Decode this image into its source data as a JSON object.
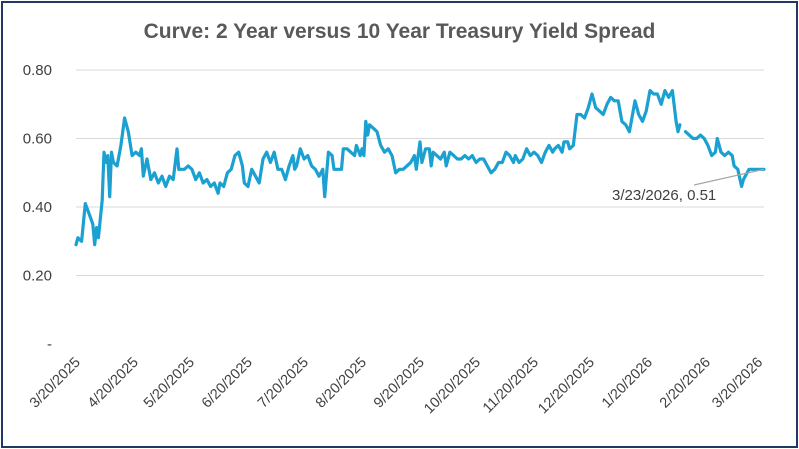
{
  "chart_data": {
    "type": "line",
    "title": "Curve: 2 Year versus 10 Year Treasury Yield Spread",
    "xlabel": "",
    "ylabel": "",
    "ylim": [
      0,
      0.8
    ],
    "yticks": [
      0,
      0.2,
      0.4,
      0.6,
      0.8
    ],
    "ytick_labels": [
      "-",
      "0.20",
      "0.40",
      "0.60",
      "0.80"
    ],
    "xlim": [
      "3/20/2025",
      "3/23/2026"
    ],
    "x_tick_labels": [
      "3/20/2025",
      "4/20/2025",
      "5/20/2025",
      "6/20/2025",
      "7/20/2025",
      "8/20/2025",
      "9/20/2025",
      "10/20/2025",
      "11/20/2025",
      "12/20/2025",
      "1/20/2026",
      "2/20/2026",
      "3/20/2026"
    ],
    "x_tick_days": [
      0,
      31,
      61,
      92,
      122,
      153,
      184,
      214,
      245,
      275,
      306,
      337,
      365
    ],
    "grid": true,
    "series": [
      {
        "name": "2 Year versus 10 Year Treasury Yield Spread",
        "color": "#1ba1d1",
        "points": [
          [
            0,
            0.29
          ],
          [
            1,
            0.31
          ],
          [
            3,
            0.3
          ],
          [
            5,
            0.41
          ],
          [
            7,
            0.38
          ],
          [
            9,
            0.35
          ],
          [
            10,
            0.29
          ],
          [
            11,
            0.34
          ],
          [
            12,
            0.31
          ],
          [
            14,
            0.42
          ],
          [
            15,
            0.56
          ],
          [
            16,
            0.53
          ],
          [
            17,
            0.55
          ],
          [
            18,
            0.43
          ],
          [
            19,
            0.56
          ],
          [
            20,
            0.53
          ],
          [
            22,
            0.52
          ],
          [
            24,
            0.58
          ],
          [
            26,
            0.66
          ],
          [
            28,
            0.62
          ],
          [
            30,
            0.55
          ],
          [
            32,
            0.56
          ],
          [
            34,
            0.55
          ],
          [
            35,
            0.57
          ],
          [
            36,
            0.49
          ],
          [
            38,
            0.54
          ],
          [
            40,
            0.48
          ],
          [
            42,
            0.5
          ],
          [
            44,
            0.47
          ],
          [
            46,
            0.49
          ],
          [
            48,
            0.46
          ],
          [
            50,
            0.49
          ],
          [
            52,
            0.48
          ],
          [
            54,
            0.57
          ],
          [
            55,
            0.51
          ],
          [
            58,
            0.51
          ],
          [
            60,
            0.52
          ],
          [
            62,
            0.51
          ],
          [
            64,
            0.48
          ],
          [
            66,
            0.5
          ],
          [
            68,
            0.47
          ],
          [
            70,
            0.48
          ],
          [
            72,
            0.46
          ],
          [
            74,
            0.47
          ],
          [
            76,
            0.44
          ],
          [
            77,
            0.47
          ],
          [
            79,
            0.46
          ],
          [
            81,
            0.5
          ],
          [
            83,
            0.51
          ],
          [
            85,
            0.55
          ],
          [
            87,
            0.56
          ],
          [
            89,
            0.52
          ],
          [
            90,
            0.47
          ],
          [
            92,
            0.46
          ],
          [
            94,
            0.51
          ],
          [
            96,
            0.49
          ],
          [
            98,
            0.47
          ],
          [
            100,
            0.54
          ],
          [
            102,
            0.56
          ],
          [
            104,
            0.53
          ],
          [
            106,
            0.56
          ],
          [
            108,
            0.51
          ],
          [
            110,
            0.51
          ],
          [
            112,
            0.48
          ],
          [
            114,
            0.52
          ],
          [
            116,
            0.55
          ],
          [
            117,
            0.51
          ],
          [
            118,
            0.52
          ],
          [
            120,
            0.57
          ],
          [
            122,
            0.54
          ],
          [
            124,
            0.55
          ],
          [
            126,
            0.52
          ],
          [
            128,
            0.51
          ],
          [
            130,
            0.49
          ],
          [
            132,
            0.51
          ],
          [
            133,
            0.43
          ],
          [
            135,
            0.56
          ],
          [
            137,
            0.55
          ],
          [
            138,
            0.51
          ],
          [
            140,
            0.51
          ],
          [
            142,
            0.51
          ],
          [
            143,
            0.57
          ],
          [
            145,
            0.57
          ],
          [
            147,
            0.56
          ],
          [
            149,
            0.55
          ],
          [
            150,
            0.58
          ],
          [
            152,
            0.55
          ],
          [
            153,
            0.57
          ],
          [
            154,
            0.55
          ],
          [
            155,
            0.65
          ],
          [
            156,
            0.61
          ],
          [
            157,
            0.64
          ],
          [
            159,
            0.63
          ],
          [
            161,
            0.62
          ],
          [
            163,
            0.58
          ],
          [
            165,
            0.56
          ],
          [
            167,
            0.57
          ],
          [
            169,
            0.55
          ],
          [
            171,
            0.5
          ],
          [
            173,
            0.51
          ],
          [
            175,
            0.51
          ],
          [
            177,
            0.52
          ],
          [
            179,
            0.53
          ],
          [
            181,
            0.55
          ],
          [
            182,
            0.51
          ],
          [
            184,
            0.59
          ],
          [
            185,
            0.53
          ],
          [
            187,
            0.57
          ],
          [
            189,
            0.57
          ],
          [
            190,
            0.52
          ],
          [
            191,
            0.56
          ],
          [
            193,
            0.55
          ],
          [
            195,
            0.54
          ],
          [
            197,
            0.56
          ],
          [
            198,
            0.52
          ],
          [
            200,
            0.56
          ],
          [
            202,
            0.55
          ],
          [
            204,
            0.54
          ],
          [
            206,
            0.54
          ],
          [
            208,
            0.55
          ],
          [
            210,
            0.54
          ],
          [
            212,
            0.55
          ],
          [
            214,
            0.53
          ],
          [
            216,
            0.54
          ],
          [
            218,
            0.54
          ],
          [
            220,
            0.52
          ],
          [
            222,
            0.5
          ],
          [
            224,
            0.51
          ],
          [
            226,
            0.53
          ],
          [
            228,
            0.53
          ],
          [
            230,
            0.56
          ],
          [
            232,
            0.55
          ],
          [
            234,
            0.53
          ],
          [
            235,
            0.55
          ],
          [
            237,
            0.53
          ],
          [
            239,
            0.54
          ],
          [
            241,
            0.57
          ],
          [
            243,
            0.55
          ],
          [
            245,
            0.56
          ],
          [
            247,
            0.55
          ],
          [
            249,
            0.53
          ],
          [
            251,
            0.56
          ],
          [
            253,
            0.58
          ],
          [
            255,
            0.56
          ],
          [
            256,
            0.57
          ],
          [
            258,
            0.58
          ],
          [
            260,
            0.56
          ],
          [
            261,
            0.59
          ],
          [
            263,
            0.59
          ],
          [
            264,
            0.57
          ],
          [
            266,
            0.58
          ],
          [
            268,
            0.67
          ],
          [
            270,
            0.67
          ],
          [
            272,
            0.66
          ],
          [
            274,
            0.69
          ],
          [
            276,
            0.73
          ],
          [
            278,
            0.69
          ],
          [
            280,
            0.68
          ],
          [
            282,
            0.67
          ],
          [
            284,
            0.7
          ],
          [
            286,
            0.72
          ],
          [
            288,
            0.71
          ],
          [
            290,
            0.71
          ],
          [
            292,
            0.65
          ],
          [
            294,
            0.64
          ],
          [
            296,
            0.62
          ],
          [
            297,
            0.65
          ],
          [
            299,
            0.71
          ],
          [
            301,
            0.67
          ],
          [
            303,
            0.65
          ],
          [
            305,
            0.68
          ],
          [
            307,
            0.74
          ],
          [
            309,
            0.73
          ],
          [
            311,
            0.73
          ],
          [
            313,
            0.7
          ],
          [
            315,
            0.74
          ],
          [
            317,
            0.72
          ],
          [
            319,
            0.74
          ],
          [
            321,
            0.65
          ],
          [
            322,
            0.62
          ],
          [
            323,
            0.64
          ],
          null,
          [
            326,
            0.62
          ],
          [
            328,
            0.61
          ],
          [
            330,
            0.6
          ],
          [
            332,
            0.6
          ],
          [
            334,
            0.61
          ],
          [
            336,
            0.6
          ],
          [
            338,
            0.58
          ],
          [
            340,
            0.55
          ],
          [
            342,
            0.56
          ],
          [
            343,
            0.6
          ],
          [
            345,
            0.56
          ],
          [
            347,
            0.55
          ],
          [
            349,
            0.56
          ],
          [
            351,
            0.55
          ],
          [
            352,
            0.52
          ],
          [
            354,
            0.51
          ],
          [
            356,
            0.46
          ],
          [
            357,
            0.48
          ],
          [
            360,
            0.51
          ],
          [
            363,
            0.51
          ],
          [
            368,
            0.51
          ]
        ]
      }
    ],
    "annotation": {
      "text": "3/23/2026, 0.51",
      "x_label": "3/23/2026",
      "y": 0.51
    }
  },
  "colors": {
    "line": "#1ba1d1",
    "grid": "#d9d9d9",
    "frame": "#1f3864",
    "text": "#404040",
    "title": "#595959"
  }
}
